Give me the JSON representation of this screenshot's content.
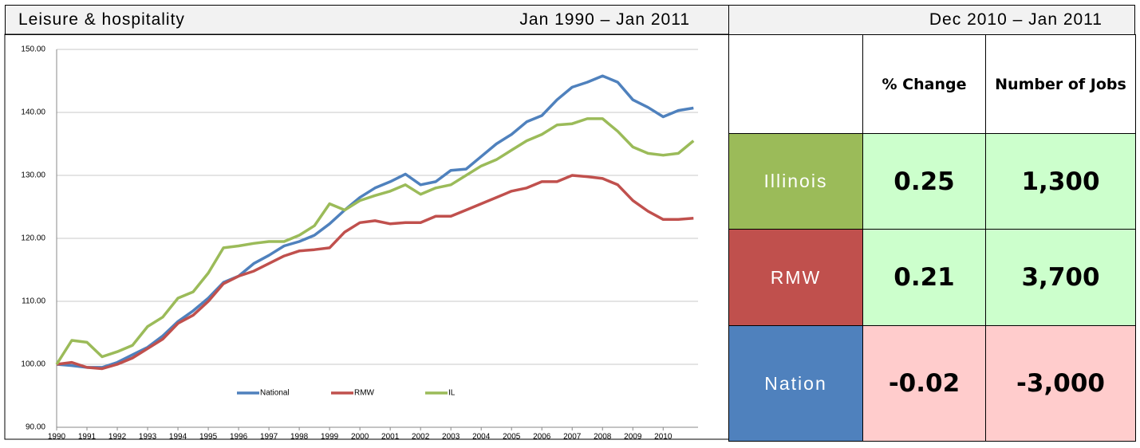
{
  "header": {
    "title": "Leisure & hospitality",
    "period": "Jan 1990 – Jan 2011"
  },
  "chart_data": {
    "type": "line",
    "x": [
      1990,
      1990.5,
      1991,
      1991.5,
      1992,
      1992.5,
      1993,
      1993.5,
      1994,
      1994.5,
      1995,
      1995.5,
      1996,
      1996.5,
      1997,
      1997.5,
      1998,
      1998.5,
      1999,
      1999.5,
      2000,
      2000.5,
      2001,
      2001.5,
      2002,
      2002.5,
      2003,
      2003.5,
      2004,
      2004.5,
      2005,
      2005.5,
      2006,
      2006.5,
      2007,
      2007.5,
      2008,
      2008.5,
      2009,
      2009.5,
      2010,
      2010.5,
      2011
    ],
    "series": [
      {
        "name": "National",
        "color": "#4f81bd",
        "values": [
          100,
          99.8,
          99.5,
          99.5,
          100.3,
          101.5,
          102.7,
          104.5,
          106.8,
          108.5,
          110.5,
          113,
          114,
          116,
          117.3,
          118.8,
          119.5,
          120.5,
          122.3,
          124.5,
          126.5,
          128,
          129,
          130.2,
          128.5,
          129,
          130.8,
          131,
          133,
          135,
          136.5,
          138.5,
          139.5,
          142,
          144,
          144.8,
          145.8,
          144.8,
          142,
          140.8,
          139.3,
          140.3,
          140.7
        ]
      },
      {
        "name": "RMW",
        "color": "#c0504d",
        "values": [
          100,
          100.3,
          99.5,
          99.3,
          100,
          101,
          102.5,
          104,
          106.5,
          107.8,
          110,
          112.8,
          114,
          114.8,
          116,
          117.2,
          118,
          118.2,
          118.5,
          121,
          122.5,
          122.8,
          122.3,
          122.5,
          122.5,
          123.5,
          123.5,
          124.5,
          125.5,
          126.5,
          127.5,
          128,
          129,
          129,
          130,
          129.8,
          129.5,
          128.5,
          126,
          124.3,
          123,
          123,
          123.2
        ]
      },
      {
        "name": "IL",
        "color": "#9bbb59",
        "values": [
          100,
          103.8,
          103.5,
          101.2,
          102,
          103,
          106,
          107.5,
          110.5,
          111.5,
          114.5,
          118.5,
          118.8,
          119.2,
          119.5,
          119.5,
          120.5,
          122,
          125.5,
          124.5,
          126,
          126.8,
          127.5,
          128.5,
          127,
          128,
          128.5,
          130,
          131.5,
          132.5,
          134,
          135.5,
          136.5,
          138,
          138.2,
          139,
          139,
          137,
          134.5,
          133.5,
          133.2,
          133.5,
          135.5
        ]
      }
    ],
    "xlim": [
      1990,
      2011.15
    ],
    "xticks": [
      1990,
      1991,
      1992,
      1993,
      1994,
      1995,
      1996,
      1997,
      1998,
      1999,
      2000,
      2001,
      2002,
      2003,
      2004,
      2005,
      2006,
      2007,
      2008,
      2009,
      2010
    ],
    "ylim": [
      90,
      150
    ],
    "yticks": [
      {
        "value": 90,
        "label": "90.00"
      },
      {
        "value": 100,
        "label": "100.00"
      },
      {
        "value": 110,
        "label": "110.00"
      },
      {
        "value": 120,
        "label": "120.00"
      },
      {
        "value": 130,
        "label": "130.00"
      },
      {
        "value": 140,
        "label": "140.00"
      },
      {
        "value": 150,
        "label": "150.00"
      }
    ],
    "grid": true,
    "legend": "bottom"
  },
  "table": {
    "period": "Dec 2010 – Jan 2011",
    "columns": [
      "% Change",
      "Number of Jobs"
    ],
    "rows": [
      {
        "label": "Illinois",
        "color": "#9bbb59",
        "cell_color": "#ccffcc",
        "values": [
          "0.25",
          "1,300"
        ]
      },
      {
        "label": "RMW",
        "color": "#c0504d",
        "cell_color": "#ccffcc",
        "values": [
          "0.21",
          "3,700"
        ]
      },
      {
        "label": "Nation",
        "color": "#4f81bd",
        "cell_color": "#ffcccc",
        "values": [
          "-0.02",
          "-3,000"
        ]
      }
    ]
  }
}
